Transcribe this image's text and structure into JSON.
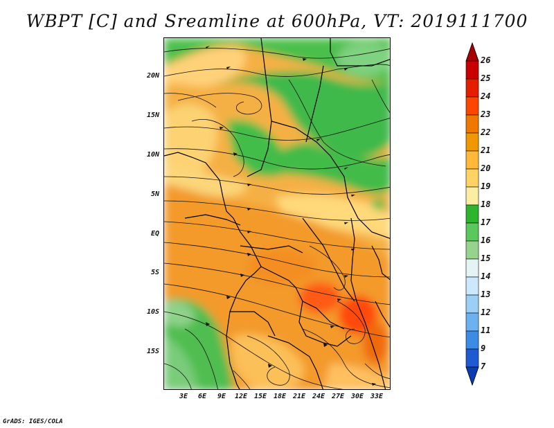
{
  "title": "WBPT [C] and Sreamline at 600hPa, VT: 2019111700",
  "latitude_labels": [
    "20N",
    "15N",
    "10N",
    "5N",
    "EQ",
    "5S",
    "10S",
    "15S"
  ],
  "longitude_labels": [
    "3E",
    "6E",
    "9E",
    "12E",
    "15E",
    "18E",
    "21E",
    "24E",
    "27E",
    "30E",
    "33E"
  ],
  "colorbar": {
    "labels": [
      "26",
      "25",
      "24",
      "23",
      "22",
      "21",
      "20",
      "19",
      "18",
      "17",
      "16",
      "15",
      "14",
      "13",
      "12",
      "11",
      "9",
      "7"
    ],
    "colors": [
      "#a80000",
      "#c80000",
      "#e61e00",
      "#ff4600",
      "#f07800",
      "#f09800",
      "#ffb838",
      "#ffd264",
      "#fbeea0",
      "#2eb42e",
      "#5ac85a",
      "#96d48e",
      "#e4f4f4",
      "#cce8fc",
      "#9ccff6",
      "#6db2f0",
      "#3c8ce6",
      "#1e5ad2",
      "#0a3cb4"
    ]
  },
  "credit": "GrADS: IGES/COLA"
}
